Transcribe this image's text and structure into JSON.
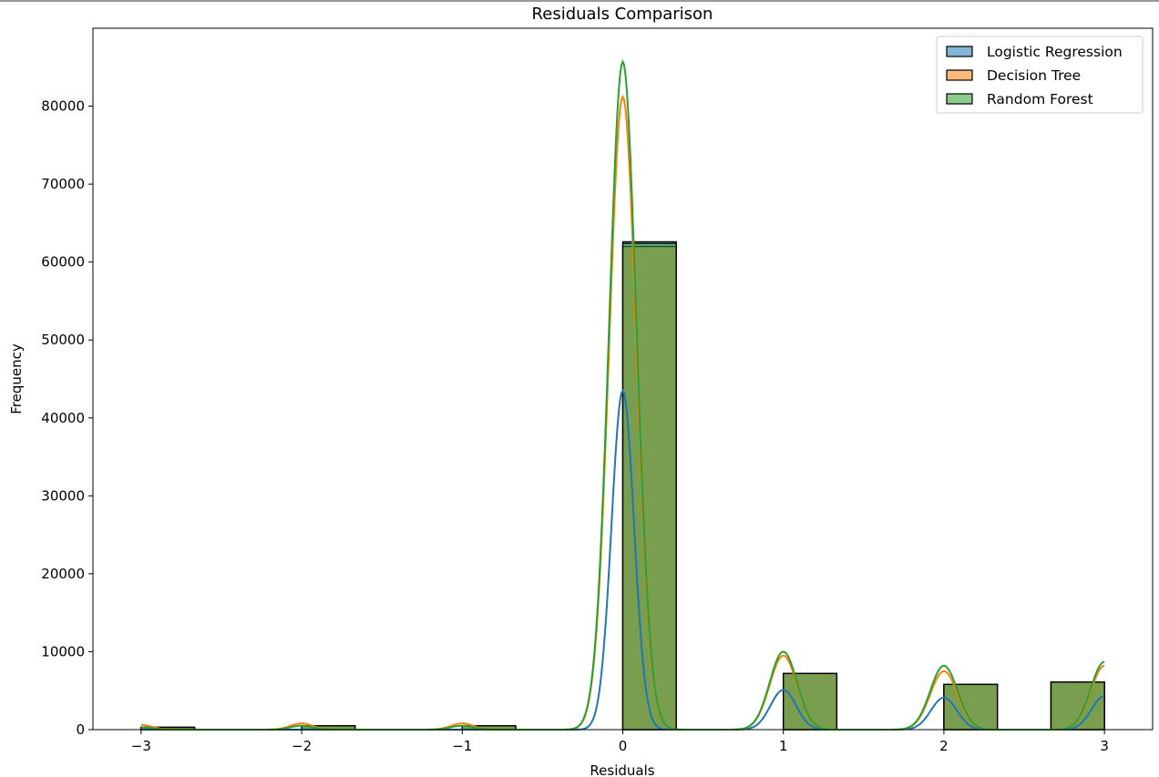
{
  "chart_data": {
    "type": "histogram",
    "title": "Residuals Comparison",
    "xlabel": "Residuals",
    "ylabel": "Frequency",
    "xlim": [
      -3.3,
      3.3
    ],
    "ylim": [
      0,
      90000
    ],
    "xticks": [
      "−3",
      "−2",
      "−1",
      "0",
      "1",
      "2",
      "3"
    ],
    "xtick_values": [
      -3,
      -2,
      -1,
      0,
      1,
      2,
      3
    ],
    "yticks": [
      "0",
      "10000",
      "20000",
      "30000",
      "40000",
      "50000",
      "60000",
      "70000",
      "80000"
    ],
    "ytick_values": [
      0,
      10000,
      20000,
      30000,
      40000,
      50000,
      60000,
      70000,
      80000
    ],
    "legend_position": "top-right",
    "bin_edges": [
      -3,
      -2.6667,
      -2.3333,
      -2,
      -1.6667,
      -1.3333,
      -1,
      -0.6667,
      -0.3333,
      0,
      0.3333,
      0.6667,
      1,
      1.3333,
      1.6667,
      2,
      2.3333,
      2.6667,
      3
    ],
    "series": [
      {
        "name": "Logistic Regression",
        "color": "#1f77b4",
        "bins": [
          {
            "x0": -3.0,
            "x1": -2.667,
            "value": 300
          },
          {
            "x0": -2.0,
            "x1": -1.667,
            "value": 500
          },
          {
            "x0": -1.0,
            "x1": -0.667,
            "value": 500
          },
          {
            "x0": 0.0,
            "x1": 0.333,
            "value": 62600
          },
          {
            "x0": 1.0,
            "x1": 1.333,
            "value": 7200
          },
          {
            "x0": 2.0,
            "x1": 2.333,
            "value": 5800
          },
          {
            "x0": 2.667,
            "x1": 3.0,
            "value": 6100
          }
        ],
        "kde_peaks": [
          {
            "x": 0,
            "value": 43500,
            "width": 0.07
          },
          {
            "x": 1,
            "value": 5100,
            "width": 0.08
          },
          {
            "x": 2,
            "value": 4100,
            "width": 0.08
          },
          {
            "x": 3,
            "value": 4300,
            "width": 0.08
          }
        ]
      },
      {
        "name": "Decision Tree",
        "color": "#ff7f0e",
        "bins": [
          {
            "x0": -3.0,
            "x1": -2.667,
            "value": 300
          },
          {
            "x0": -2.0,
            "x1": -1.667,
            "value": 500
          },
          {
            "x0": -1.0,
            "x1": -0.667,
            "value": 500
          },
          {
            "x0": 0.0,
            "x1": 0.333,
            "value": 62000
          },
          {
            "x0": 1.0,
            "x1": 1.333,
            "value": 7200
          },
          {
            "x0": 2.0,
            "x1": 2.333,
            "value": 5800
          },
          {
            "x0": 2.667,
            "x1": 3.0,
            "value": 6100
          }
        ],
        "kde_peaks": [
          {
            "x": -3,
            "value": 600,
            "width": 0.07
          },
          {
            "x": -2,
            "value": 800,
            "width": 0.07
          },
          {
            "x": -1,
            "value": 800,
            "width": 0.07
          },
          {
            "x": 0,
            "value": 81200,
            "width": 0.085
          },
          {
            "x": 1,
            "value": 9500,
            "width": 0.085
          },
          {
            "x": 2,
            "value": 7500,
            "width": 0.085
          },
          {
            "x": 3,
            "value": 8200,
            "width": 0.085
          }
        ]
      },
      {
        "name": "Random Forest",
        "color": "#2ca02c",
        "bins": [
          {
            "x0": -3.0,
            "x1": -2.667,
            "value": 300
          },
          {
            "x0": -2.0,
            "x1": -1.667,
            "value": 500
          },
          {
            "x0": -1.0,
            "x1": -0.667,
            "value": 500
          },
          {
            "x0": 0.0,
            "x1": 0.333,
            "value": 62400
          },
          {
            "x0": 1.0,
            "x1": 1.333,
            "value": 7200
          },
          {
            "x0": 2.0,
            "x1": 2.333,
            "value": 5800
          },
          {
            "x0": 2.667,
            "x1": 3.0,
            "value": 6100
          }
        ],
        "kde_peaks": [
          {
            "x": -3,
            "value": 300,
            "width": 0.07
          },
          {
            "x": -2,
            "value": 500,
            "width": 0.07
          },
          {
            "x": -1,
            "value": 500,
            "width": 0.07
          },
          {
            "x": 0,
            "value": 85700,
            "width": 0.085
          },
          {
            "x": 1,
            "value": 10000,
            "width": 0.085
          },
          {
            "x": 2,
            "value": 8200,
            "width": 0.085
          },
          {
            "x": 3,
            "value": 8700,
            "width": 0.085
          }
        ]
      }
    ]
  }
}
